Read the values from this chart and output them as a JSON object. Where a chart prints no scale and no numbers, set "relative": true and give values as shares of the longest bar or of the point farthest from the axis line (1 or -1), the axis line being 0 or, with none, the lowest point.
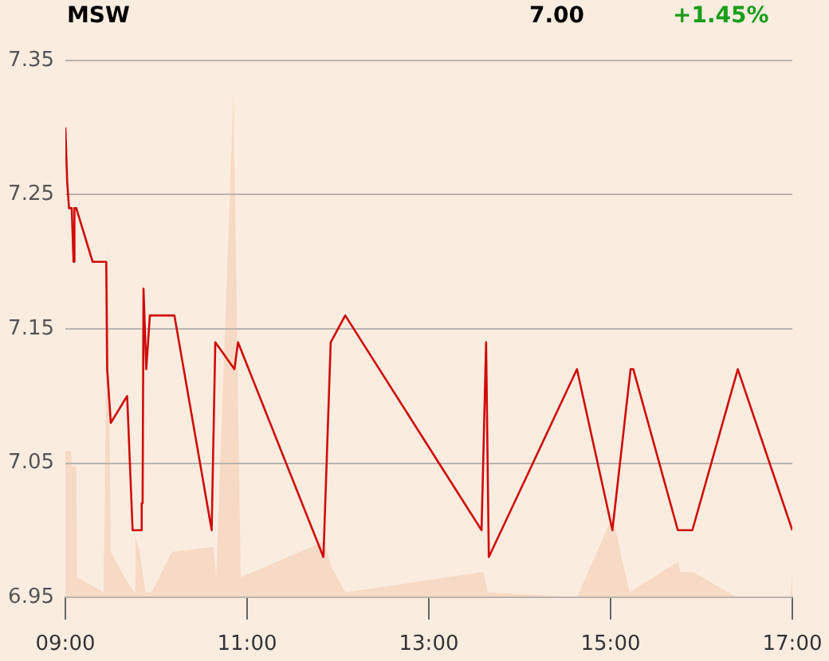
{
  "chart_data": [
    {
      "type": "line",
      "title": "MSW",
      "annotations": [
        "7.00",
        "+1.45%"
      ],
      "tick_labels": "y",
      "xlim": [
        9,
        17
      ],
      "ylim": [
        6.95,
        7.35
      ],
      "yticks": [
        6.95,
        7.05,
        7.15,
        7.25,
        7.35
      ],
      "grid": "y",
      "legend": false,
      "marker": "none",
      "color": "#cf0a0a",
      "x": [
        9.0,
        9.02,
        9.03,
        9.04,
        9.07,
        9.09,
        9.1,
        9.12,
        9.3,
        9.45,
        9.46,
        9.5,
        9.68,
        9.74,
        9.83,
        9.84,
        9.85,
        9.86,
        9.89,
        9.93,
        10.2,
        10.61,
        10.65,
        10.86,
        10.9,
        11.84,
        11.92,
        12.08,
        13.58,
        13.63,
        13.66,
        14.63,
        15.02,
        15.22,
        15.25,
        15.74,
        15.9,
        16.4,
        17.0
      ],
      "values": [
        7.3,
        7.26,
        7.26,
        7.24,
        7.24,
        7.2,
        7.24,
        7.24,
        7.2,
        7.2,
        7.12,
        7.08,
        7.1,
        7.0,
        7.0,
        7.02,
        7.02,
        7.18,
        7.12,
        7.16,
        7.16,
        7.0,
        7.14,
        7.12,
        7.14,
        6.98,
        7.14,
        7.16,
        7.0,
        7.14,
        6.98,
        7.12,
        7.0,
        7.12,
        7.12,
        7.0,
        7.0,
        7.12,
        7.0
      ]
    },
    {
      "type": "area",
      "relative": true,
      "color": "#f7dac5",
      "xlim": [
        9,
        17
      ],
      "xticks": [
        {
          "value": 9,
          "label": "09:00"
        },
        {
          "value": 11,
          "label": "11:00"
        },
        {
          "value": 13,
          "label": "13:00"
        },
        {
          "value": 15,
          "label": "15:00"
        },
        {
          "value": 17,
          "label": "17:00"
        }
      ],
      "x": [
        9.0,
        9.06,
        9.07,
        9.12,
        9.13,
        9.42,
        9.47,
        9.5,
        9.65,
        9.76,
        9.77,
        9.82,
        9.88,
        9.95,
        10.17,
        10.63,
        10.66,
        10.85,
        10.93,
        11.84,
        11.93,
        12.08,
        13.6,
        13.65,
        14.63,
        15.02,
        15.21,
        15.74,
        15.77,
        15.91,
        16.39,
        16.98,
        17.0
      ],
      "values": [
        0.29,
        0.29,
        0.26,
        0.26,
        0.04,
        0.01,
        0.7,
        0.09,
        0.04,
        0.01,
        0.12,
        0.09,
        0.01,
        0.01,
        0.09,
        0.1,
        0.04,
        1.0,
        0.04,
        0.11,
        0.06,
        0.01,
        0.05,
        0.01,
        0,
        0.16,
        0.01,
        0.07,
        0.05,
        0.05,
        0,
        0,
        0.05
      ]
    }
  ]
}
